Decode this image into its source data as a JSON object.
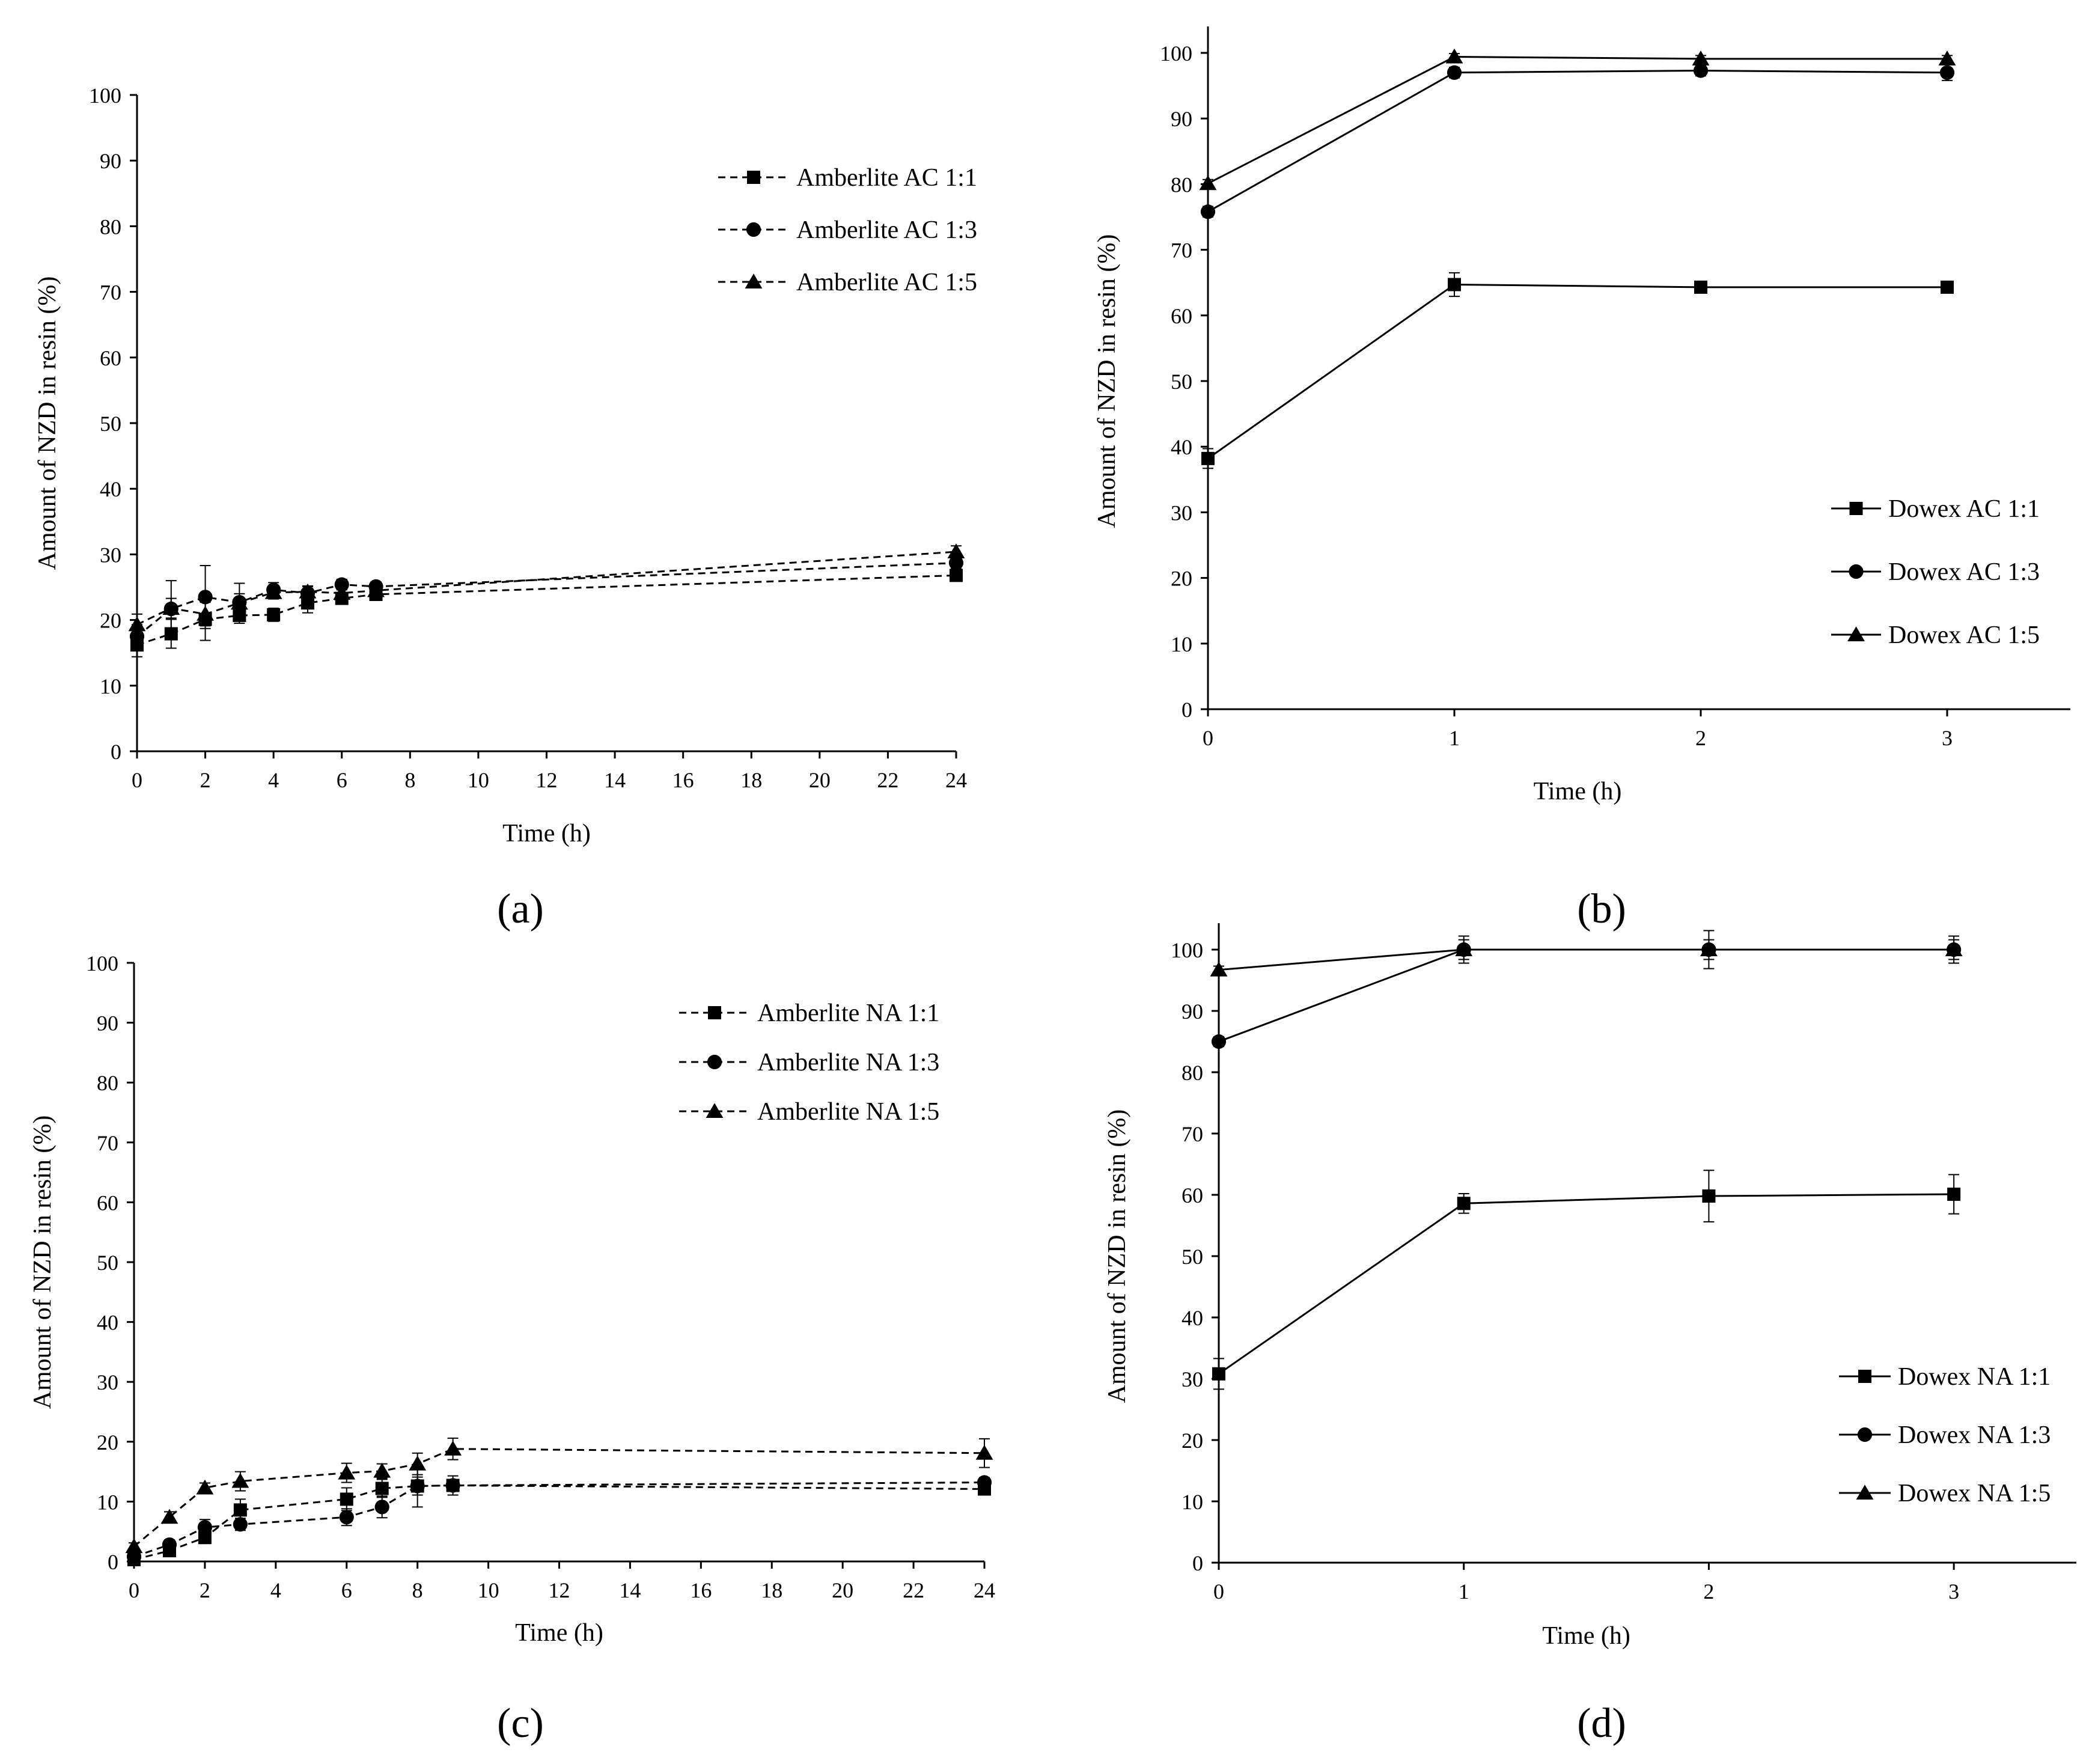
{
  "figure": {
    "panel_labels": [
      "(a)",
      "(b)",
      "(c)",
      "(d)"
    ]
  },
  "chart_data": [
    {
      "panel": "a",
      "type": "line",
      "line_style": "dashed",
      "xlabel": "Time (h)",
      "ylabel": "Amount of NZD in resin (%)",
      "xlim": [
        0,
        24
      ],
      "ylim": [
        0,
        100
      ],
      "xticks": [
        0,
        2,
        4,
        6,
        8,
        10,
        12,
        14,
        16,
        18,
        20,
        22,
        24
      ],
      "yticks": [
        0,
        10,
        20,
        30,
        40,
        50,
        60,
        70,
        80,
        90,
        100
      ],
      "legend_position": "top-right",
      "series": [
        {
          "name": "Amberlite AC 1:1",
          "marker": "square",
          "x": [
            0,
            1,
            2,
            3,
            4,
            5,
            6,
            7,
            24
          ],
          "values": [
            16.2,
            17.9,
            20.1,
            20.7,
            20.8,
            22.6,
            23.3,
            23.9,
            26.8
          ],
          "errors": [
            1.8,
            2.2,
            3.2,
            1.2,
            1.0,
            1.5,
            0.8,
            0.9,
            0.8
          ]
        },
        {
          "name": "Amberlite AC 1:3",
          "marker": "circle",
          "x": [
            0,
            1,
            2,
            3,
            4,
            5,
            6,
            7,
            24
          ],
          "values": [
            17.5,
            21.7,
            23.5,
            22.7,
            24.6,
            24.1,
            25.4,
            25.1,
            28.7
          ],
          "errors": [
            1.8,
            4.3,
            4.8,
            2.9,
            1.1,
            1.0,
            0.8,
            0.7,
            0.9
          ]
        },
        {
          "name": "Amberlite AC 1:5",
          "marker": "triangle",
          "x": [
            0,
            1,
            2,
            3,
            4,
            5,
            6,
            7,
            24
          ],
          "values": [
            19.3,
            21.8,
            20.9,
            22.6,
            24.2,
            24.3,
            24.1,
            24.5,
            30.4
          ],
          "errors": [
            1.6,
            1.5,
            1.8,
            1.4,
            1.0,
            0.9,
            0.8,
            0.8,
            0.9
          ]
        }
      ]
    },
    {
      "panel": "b",
      "type": "line",
      "line_style": "solid",
      "xlabel": "Time (h)",
      "ylabel": "Amount of NZD in resin (%)",
      "xlim": [
        0,
        3.5
      ],
      "ylim": [
        0,
        100
      ],
      "xticks": [
        0,
        1,
        2,
        3
      ],
      "yticks": [
        0,
        10,
        20,
        30,
        40,
        50,
        60,
        70,
        80,
        90,
        100
      ],
      "legend_position": "bottom-right",
      "series": [
        {
          "name": "Dowex AC 1:1",
          "marker": "square",
          "x": [
            0,
            1,
            2,
            3
          ],
          "values": [
            38.2,
            64.7,
            64.3,
            64.3
          ],
          "errors": [
            1.5,
            1.8,
            0.7,
            0.6
          ]
        },
        {
          "name": "Dowex AC 1:3",
          "marker": "circle",
          "x": [
            0,
            1,
            2,
            3
          ],
          "values": [
            75.8,
            97.0,
            97.3,
            97.0
          ],
          "errors": [
            0.8,
            0.8,
            0.8,
            1.2
          ]
        },
        {
          "name": "Dowex AC 1:5",
          "marker": "triangle",
          "x": [
            0,
            1,
            2,
            3
          ],
          "values": [
            80.1,
            99.4,
            99.1,
            99.1
          ],
          "errors": [
            0.6,
            0.5,
            0.5,
            0.5
          ]
        }
      ]
    },
    {
      "panel": "c",
      "type": "line",
      "line_style": "dashed",
      "xlabel": "Time (h)",
      "ylabel": "Amount of NZD in resin (%)",
      "xlim": [
        0,
        24
      ],
      "ylim": [
        0,
        100
      ],
      "xticks": [
        0,
        2,
        4,
        6,
        8,
        10,
        12,
        14,
        16,
        18,
        20,
        22,
        24
      ],
      "yticks": [
        0,
        10,
        20,
        30,
        40,
        50,
        60,
        70,
        80,
        90,
        100
      ],
      "legend_position": "top-right",
      "series": [
        {
          "name": "Amberlite NA 1:1",
          "marker": "square",
          "x": [
            0,
            1,
            2,
            3,
            6,
            7,
            8,
            9,
            24
          ],
          "values": [
            0.3,
            1.8,
            4.0,
            8.6,
            10.4,
            12.2,
            12.6,
            12.7,
            12.1
          ],
          "errors": [
            0.4,
            0.6,
            1.0,
            1.8,
            1.9,
            1.5,
            3.5,
            1.6,
            0.9
          ]
        },
        {
          "name": "Amberlite NA 1:3",
          "marker": "circle",
          "x": [
            0,
            1,
            2,
            3,
            6,
            7,
            8,
            9,
            24
          ],
          "values": [
            0.8,
            2.8,
            5.7,
            6.2,
            7.4,
            9.1,
            12.6,
            12.7,
            13.2
          ],
          "errors": [
            0.5,
            0.8,
            1.3,
            1.0,
            1.4,
            1.8,
            1.5,
            1.0,
            0.8
          ]
        },
        {
          "name": "Amberlite NA 1:5",
          "marker": "triangle",
          "x": [
            0,
            1,
            2,
            3,
            6,
            7,
            8,
            9,
            24
          ],
          "values": [
            2.5,
            7.4,
            12.3,
            13.4,
            14.8,
            15.1,
            16.3,
            18.8,
            18.1
          ],
          "errors": [
            0.6,
            0.9,
            0.8,
            1.6,
            1.6,
            1.2,
            1.8,
            1.8,
            2.4
          ]
        }
      ]
    },
    {
      "panel": "d",
      "type": "line",
      "line_style": "solid",
      "xlabel": "Time (h)",
      "ylabel": "Amount of NZD in resin (%)",
      "xlim": [
        0,
        3.5
      ],
      "ylim": [
        0,
        100
      ],
      "xticks": [
        0,
        1,
        2,
        3
      ],
      "yticks": [
        0,
        10,
        20,
        30,
        40,
        50,
        60,
        70,
        80,
        90,
        100
      ],
      "legend_position": "bottom-right",
      "series": [
        {
          "name": "Dowex NA 1:1",
          "marker": "square",
          "x": [
            0,
            1,
            2,
            3
          ],
          "values": [
            30.8,
            58.6,
            59.8,
            60.1
          ],
          "errors": [
            2.5,
            1.6,
            4.2,
            3.2
          ]
        },
        {
          "name": "Dowex NA 1:3",
          "marker": "circle",
          "x": [
            0,
            1,
            2,
            3
          ],
          "values": [
            85.0,
            100.0,
            100.0,
            100.0
          ],
          "errors": [
            0.8,
            2.2,
            3.1,
            2.2
          ]
        },
        {
          "name": "Dowex NA 1:5",
          "marker": "triangle",
          "x": [
            0,
            1,
            2,
            3
          ],
          "values": [
            96.7,
            100.0,
            100.0,
            100.0
          ],
          "errors": [
            0.6,
            1.6,
            1.6,
            1.6
          ]
        }
      ]
    }
  ]
}
